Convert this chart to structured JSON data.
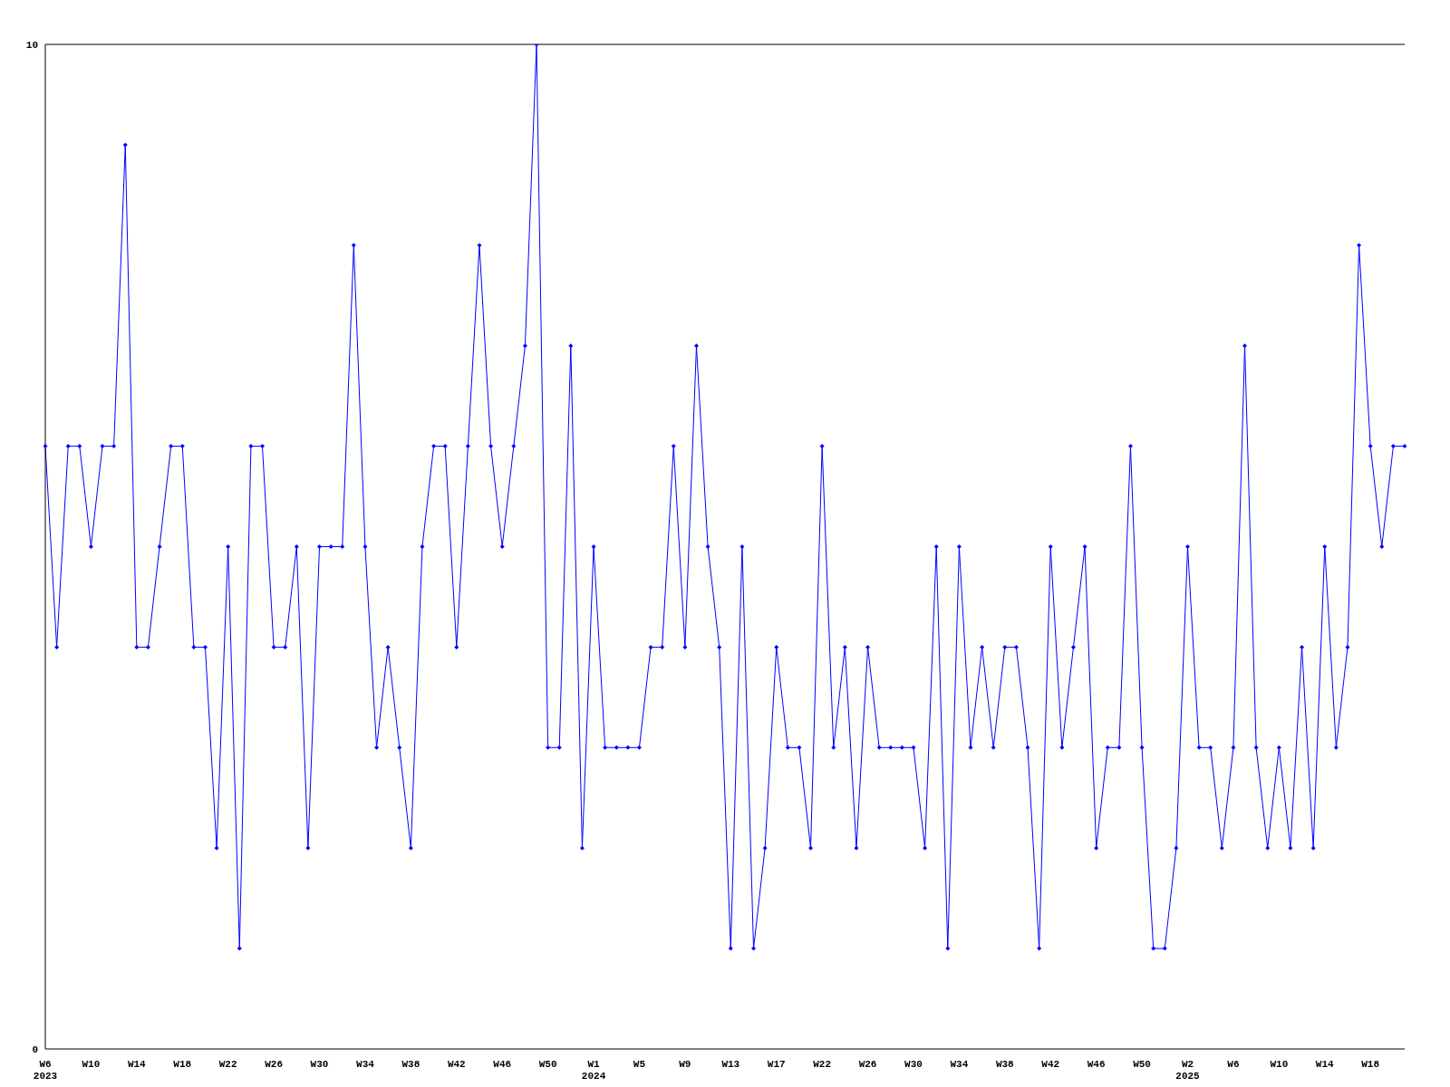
{
  "chart_data": {
    "type": "line",
    "categories": [
      "W6\n2023",
      null,
      null,
      null,
      "W10",
      null,
      null,
      null,
      "W14",
      null,
      null,
      null,
      "W18",
      null,
      null,
      null,
      "W22",
      null,
      null,
      null,
      "W26",
      null,
      null,
      null,
      "W30",
      null,
      null,
      null,
      "W34",
      null,
      null,
      null,
      "W38",
      null,
      null,
      null,
      "W42",
      null,
      null,
      null,
      "W46",
      null,
      null,
      null,
      "W50",
      null,
      null,
      null,
      "W1\n2024",
      null,
      null,
      null,
      "W5",
      null,
      null,
      null,
      "W9",
      null,
      null,
      null,
      "W13",
      null,
      null,
      null,
      "W17",
      null,
      null,
      null,
      "W22",
      null,
      null,
      null,
      "W26",
      null,
      null,
      null,
      "W30",
      null,
      null,
      null,
      "W34",
      null,
      null,
      null,
      "W38",
      null,
      null,
      null,
      "W42",
      null,
      null,
      null,
      "W46",
      null,
      null,
      null,
      "W50",
      null,
      null,
      null,
      "W2\n2025",
      null,
      null,
      null,
      "W6",
      null,
      null,
      null,
      "W10",
      null,
      null,
      null,
      "W14",
      null,
      null,
      null,
      "W18",
      null,
      null,
      null
    ],
    "series": [
      {
        "color": "#0000ff",
        "values": [
          6,
          4,
          6,
          6,
          5,
          6,
          6,
          9,
          4,
          4,
          5,
          6,
          6,
          4,
          4,
          2,
          5,
          1,
          6,
          6,
          4,
          4,
          5,
          2,
          5,
          5,
          5,
          8,
          5,
          3,
          4,
          3,
          2,
          5,
          6,
          6,
          4,
          6,
          8,
          6,
          5,
          6,
          7,
          10,
          3,
          3,
          7,
          2,
          5,
          3,
          3,
          3,
          3,
          4,
          4,
          6,
          4,
          7,
          5,
          4,
          1,
          5,
          1,
          2,
          4,
          3,
          3,
          2,
          6,
          3,
          4,
          2,
          4,
          3,
          3,
          3,
          3,
          2,
          5,
          1,
          5,
          3,
          4,
          3,
          4,
          4,
          3,
          1,
          5,
          3,
          4,
          5,
          2,
          3,
          3,
          6,
          3,
          1,
          1,
          2,
          5,
          3,
          3,
          2,
          3,
          7,
          3,
          2,
          3,
          2,
          4,
          2,
          5,
          3,
          4,
          8,
          6,
          5,
          6,
          6
        ]
      }
    ],
    "ylim": [
      0,
      10
    ],
    "yticks": [
      0,
      10
    ],
    "grid": false,
    "marker": "diamond",
    "line_style": "solid"
  }
}
